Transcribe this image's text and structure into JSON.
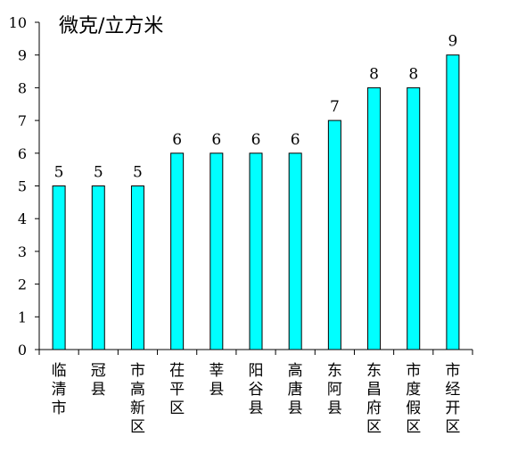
{
  "chart_data": {
    "type": "bar",
    "ylabel": "微克/立方米",
    "ylim": [
      0,
      10
    ],
    "yticks": [
      "0",
      "1",
      "2",
      "3",
      "4",
      "5",
      "6",
      "7",
      "8",
      "9",
      "10"
    ],
    "categories": [
      "临清市",
      "冠县",
      "市高新区",
      "茌平区",
      "莘县",
      "阳谷县",
      "高唐县",
      "东阿县",
      "东昌府区",
      "市度假区",
      "市经开区"
    ],
    "values": [
      5,
      5,
      5,
      6,
      6,
      6,
      6,
      7,
      8,
      8,
      9
    ],
    "bar_color": "#00FFFF",
    "bar_edge_color": "#000000",
    "grid": false,
    "legend": "none"
  }
}
